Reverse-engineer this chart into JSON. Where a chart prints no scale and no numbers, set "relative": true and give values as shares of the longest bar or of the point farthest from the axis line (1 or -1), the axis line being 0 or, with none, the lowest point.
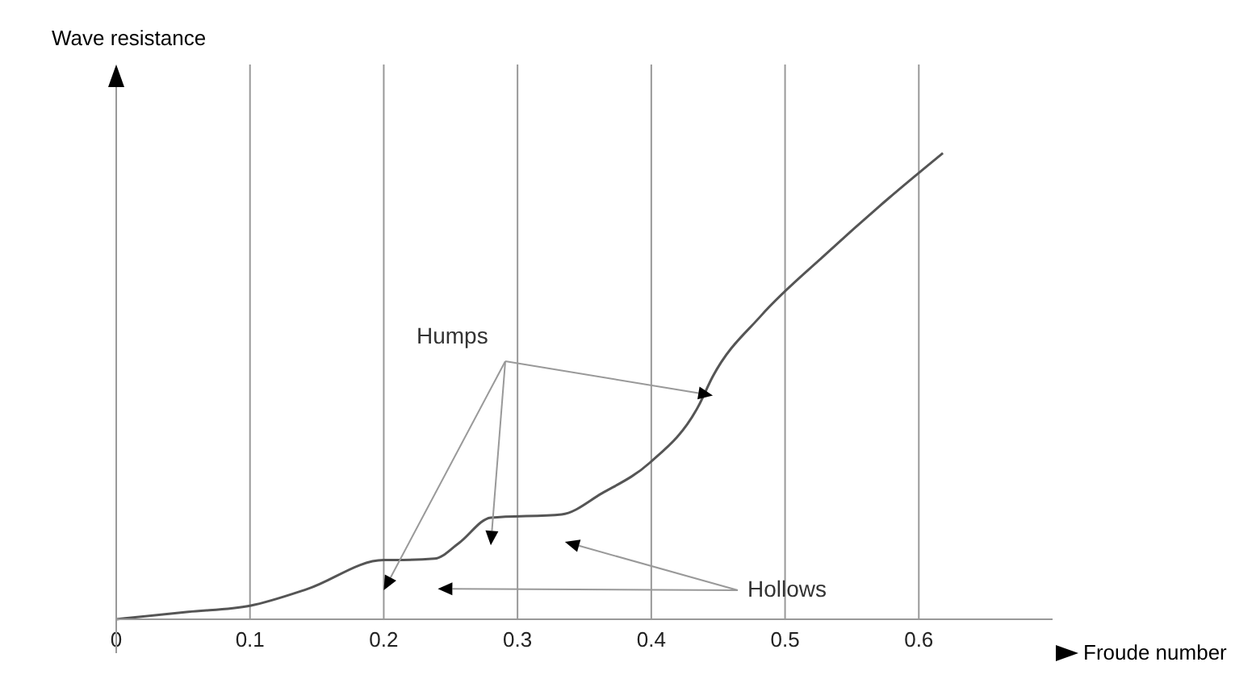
{
  "chart_data": {
    "type": "line",
    "xlabel": "Froude number",
    "ylabel": "Wave resistance",
    "relative": true,
    "x": [
      0,
      0.054,
      0.1,
      0.143,
      0.2,
      0.208,
      0.238,
      0.256,
      0.28,
      0.333,
      0.363,
      0.399,
      0.435,
      0.446,
      0.482,
      0.53,
      0.577,
      0.618
    ],
    "series": [
      {
        "color": "#555555",
        "values": [
          0,
          0.016,
          0.029,
          0.065,
          0.127,
          0.127,
          0.13,
          0.163,
          0.218,
          0.225,
          0.27,
          0.336,
          0.456,
          0.521,
          0.651,
          0.782,
          0.902,
          1
        ]
      }
    ],
    "xlim": [
      0,
      0.7
    ],
    "xticks": [
      0,
      0.1,
      0.2,
      0.3,
      0.4,
      0.5,
      0.6
    ],
    "grid": "x",
    "marker": "none",
    "line_style": "solid",
    "annotations": [
      "Humps",
      "Hollows"
    ]
  }
}
